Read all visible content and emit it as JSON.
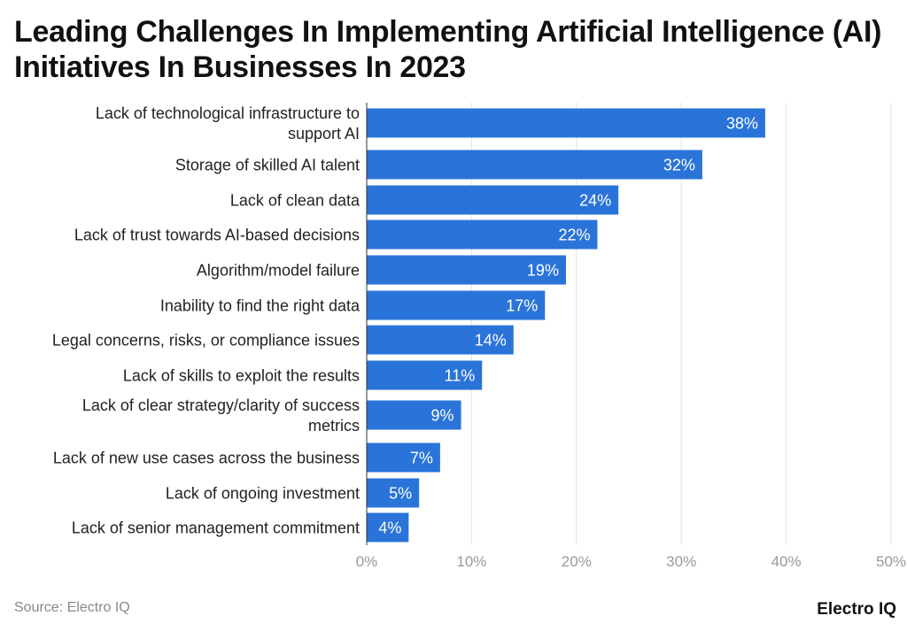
{
  "title": "Leading Challenges In Implementing Artificial Intelligence (AI) Initiatives In Businesses In 2023",
  "source": "Source: Electro IQ",
  "brand": "Electro IQ",
  "colors": {
    "bar": "#2a74d9",
    "grid": "#e2e2e2",
    "tick_text": "#999999"
  },
  "chart_data": {
    "type": "bar",
    "orientation": "horizontal",
    "categories": [
      "Lack of technological infrastructure to support AI",
      "Storage of skilled AI talent",
      "Lack of clean data",
      "Lack of trust towards AI-based decisions",
      "Algorithm/model failure",
      "Inability to find the right data",
      "Legal concerns, risks, or compliance issues",
      "Lack of skills to exploit the results",
      "Lack of clear strategy/clarity of success metrics",
      "Lack of new use cases across the business",
      "Lack of ongoing investment",
      "Lack of senior management commitment"
    ],
    "values": [
      38,
      32,
      24,
      22,
      19,
      17,
      14,
      11,
      9,
      7,
      5,
      4
    ],
    "data_labels": [
      "38%",
      "32%",
      "24%",
      "22%",
      "19%",
      "17%",
      "14%",
      "11%",
      "9%",
      "7%",
      "5%",
      "4%"
    ],
    "xlim": [
      0,
      50
    ],
    "x_ticks": [
      "0%",
      "10%",
      "20%",
      "30%",
      "40%",
      "50%"
    ],
    "grid": true,
    "legend": "none"
  }
}
